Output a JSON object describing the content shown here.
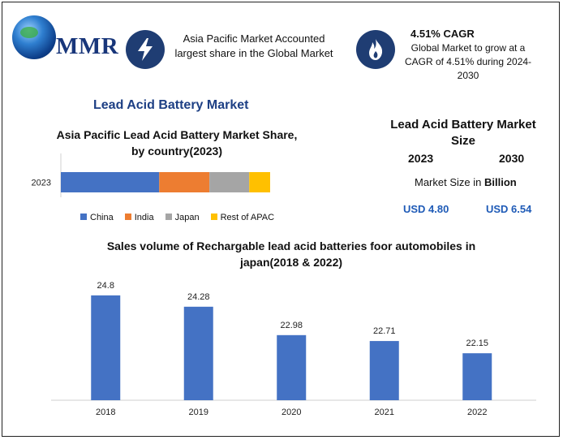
{
  "logo": {
    "text": "MMR"
  },
  "info1": {
    "text": "Asia Pacific Market Accounted largest share in the Global Market",
    "icon": "lightning-bolt-icon"
  },
  "info2": {
    "title": "4.51% CAGR",
    "text": "Global Market to grow at a CAGR of 4.51% during 2024-2030",
    "icon": "flame-icon"
  },
  "main_title": "Lead Acid Battery Market",
  "market_size": {
    "title": "Lead Acid Battery Market Size",
    "year1": "2023",
    "year2": "2030",
    "label_prefix": "Market Size in ",
    "label_bold": "Billion",
    "value1": "USD 4.80",
    "value2": "USD 6.54"
  },
  "chart_data": [
    {
      "type": "bar",
      "orientation": "horizontal",
      "stacked": true,
      "title": "Asia Pacific Lead Acid Battery Market Share, by country(2023)",
      "categories": [
        "2023"
      ],
      "series": [
        {
          "name": "China",
          "values": [
            0.47
          ],
          "color": "#4472c4"
        },
        {
          "name": "India",
          "values": [
            0.24
          ],
          "color": "#ed7d31"
        },
        {
          "name": "Japan",
          "values": [
            0.19
          ],
          "color": "#a5a5a5"
        },
        {
          "name": "Rest of APAC",
          "values": [
            0.1
          ],
          "color": "#ffc000"
        }
      ],
      "legend": "bottom"
    },
    {
      "type": "bar",
      "title": "Sales volume of Rechargable lead acid batteries foor automobiles in japan(2018 & 2022)",
      "categories": [
        "2018",
        "2019",
        "2020",
        "2021",
        "2022"
      ],
      "values": [
        24.8,
        24.28,
        22.98,
        22.71,
        22.15
      ],
      "data_labels": [
        "24.8",
        "24.28",
        "22.98",
        "22.71",
        "22.15"
      ],
      "color": "#4472c4",
      "ylim": [
        20,
        25.5
      ],
      "grid": false
    }
  ]
}
